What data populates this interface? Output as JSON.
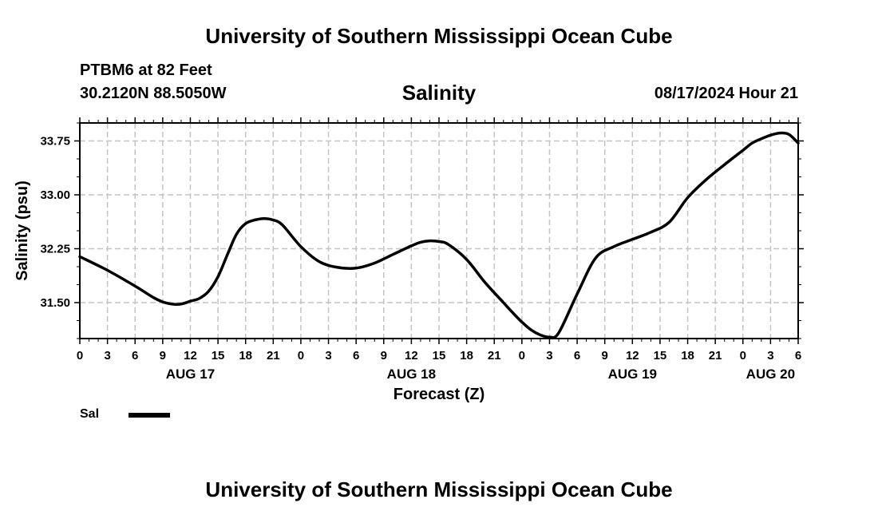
{
  "header": {
    "org_title": "University of Southern Mississippi Ocean Cube",
    "station": "PTBM6 at 82 Feet",
    "coords": "30.2120N  88.5050W",
    "datetime": "08/17/2024 Hour 21"
  },
  "footer": {
    "org_title": "University of Southern Mississippi Ocean Cube"
  },
  "legend": {
    "label": "Sal"
  },
  "chart_data": {
    "type": "line",
    "title": "Salinity",
    "xlabel": "Forecast (Z)",
    "ylabel": "Salinity (psu)",
    "xlim": [
      0,
      78
    ],
    "ylim": [
      31.0,
      34.0
    ],
    "grid": true,
    "y_ticks": [
      31.5,
      32.25,
      33.0,
      33.75
    ],
    "y_tick_labels": [
      "31.50",
      "32.25",
      "33.00",
      "33.75"
    ],
    "x_ticks": [
      0,
      3,
      6,
      9,
      12,
      15,
      18,
      21,
      24,
      27,
      30,
      33,
      36,
      39,
      42,
      45,
      48,
      51,
      54,
      57,
      60,
      63,
      66,
      69,
      72,
      75,
      78
    ],
    "x_tick_labels": [
      "0",
      "3",
      "6",
      "9",
      "12",
      "15",
      "18",
      "21",
      "0",
      "3",
      "6",
      "9",
      "12",
      "15",
      "18",
      "21",
      "0",
      "3",
      "6",
      "9",
      "12",
      "15",
      "18",
      "21",
      "0",
      "3",
      "6"
    ],
    "day_labels": [
      {
        "x": 12,
        "label": "AUG 17"
      },
      {
        "x": 36,
        "label": "AUG 18"
      },
      {
        "x": 60,
        "label": "AUG 19"
      },
      {
        "x": 75,
        "label": "AUG 20"
      }
    ],
    "series": [
      {
        "name": "Sal",
        "color": "#000000",
        "x": [
          0,
          3,
          6,
          8,
          9,
          10,
          11,
          12,
          13,
          14,
          15,
          16,
          17,
          18,
          19,
          20,
          21,
          22,
          24,
          26,
          28,
          30,
          32,
          34,
          36,
          37,
          38,
          39,
          40,
          42,
          44,
          46,
          47,
          48,
          49,
          50,
          51,
          52,
          54,
          56,
          58,
          60,
          62,
          64,
          66,
          68,
          70,
          72,
          73,
          74,
          75,
          76,
          77,
          78
        ],
        "values": [
          32.14,
          31.95,
          31.73,
          31.57,
          31.51,
          31.48,
          31.48,
          31.52,
          31.56,
          31.66,
          31.86,
          32.16,
          32.45,
          32.6,
          32.65,
          32.67,
          32.65,
          32.58,
          32.28,
          32.07,
          31.99,
          31.98,
          32.05,
          32.17,
          32.29,
          32.34,
          32.36,
          32.35,
          32.31,
          32.1,
          31.78,
          31.5,
          31.36,
          31.23,
          31.12,
          31.05,
          31.02,
          31.08,
          31.62,
          32.12,
          32.28,
          32.38,
          32.48,
          32.62,
          32.96,
          33.21,
          33.42,
          33.62,
          33.72,
          33.78,
          33.83,
          33.86,
          33.84,
          33.72
        ]
      }
    ]
  }
}
